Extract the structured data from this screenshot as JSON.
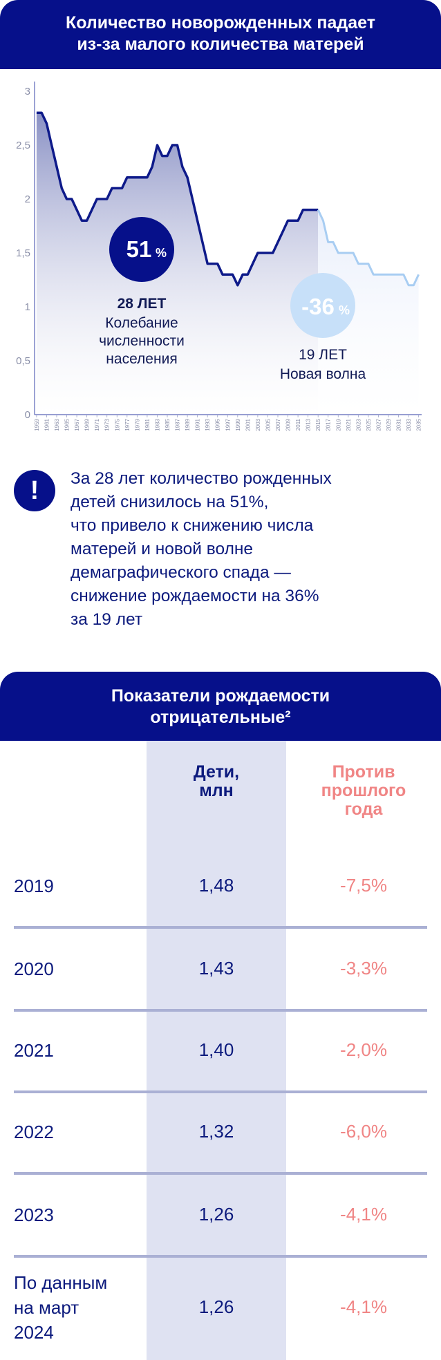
{
  "header": {
    "line1": "Количество новорожденных падает",
    "line2": "из-за малого количества матерей"
  },
  "chart_data": {
    "type": "area",
    "title": "Количество новорожденных падает из-за малого количества матерей",
    "xlabel": "",
    "ylabel": "",
    "ylim": [
      0,
      3
    ],
    "yticks": [
      "0",
      "0,5",
      "1",
      "1,5",
      "2",
      "2,5",
      "3"
    ],
    "xticks": [
      "1959",
      "1961",
      "1963",
      "1965",
      "1967",
      "1969",
      "1971",
      "1973",
      "1975",
      "1977",
      "1979",
      "1981",
      "1983",
      "1985",
      "1987",
      "1989",
      "1991",
      "1993",
      "1995",
      "1997",
      "1999",
      "2001",
      "2003",
      "2005",
      "2007",
      "2009",
      "2011",
      "2013",
      "2015",
      "2017",
      "2019",
      "2021",
      "2023",
      "2025",
      "2027",
      "2029",
      "2031",
      "2033",
      "2035"
    ],
    "series": [
      {
        "name": "",
        "style": "solid",
        "color": "#0e1a8a",
        "x": [
          1959,
          1960,
          1961,
          1962,
          1963,
          1964,
          1965,
          1966,
          1967,
          1968,
          1969,
          1970,
          1971,
          1972,
          1973,
          1974,
          1975,
          1976,
          1977,
          1978,
          1979,
          1980,
          1981,
          1982,
          1983,
          1984,
          1985,
          1986,
          1987,
          1988,
          1989,
          1990,
          1991,
          1992,
          1993,
          1994,
          1995,
          1996,
          1997,
          1998,
          1999,
          2000,
          2001,
          2002,
          2003,
          2004,
          2005,
          2006,
          2007,
          2008,
          2009,
          2010,
          2011,
          2012,
          2013,
          2014,
          2015
        ],
        "values": [
          2.8,
          2.8,
          2.7,
          2.5,
          2.3,
          2.1,
          2.0,
          2.0,
          1.9,
          1.8,
          1.8,
          1.9,
          2.0,
          2.0,
          2.0,
          2.1,
          2.1,
          2.1,
          2.2,
          2.2,
          2.2,
          2.2,
          2.2,
          2.3,
          2.5,
          2.4,
          2.4,
          2.5,
          2.5,
          2.3,
          2.2,
          2.0,
          1.8,
          1.6,
          1.4,
          1.4,
          1.4,
          1.3,
          1.3,
          1.3,
          1.2,
          1.3,
          1.3,
          1.4,
          1.5,
          1.5,
          1.5,
          1.5,
          1.6,
          1.7,
          1.8,
          1.8,
          1.8,
          1.9,
          1.9,
          1.9,
          1.9
        ]
      },
      {
        "name": "",
        "style": "forecast",
        "color": "#a8cdf2",
        "x": [
          2015,
          2016,
          2017,
          2018,
          2019,
          2020,
          2021,
          2022,
          2023,
          2024,
          2025,
          2026,
          2027,
          2028,
          2029,
          2030,
          2031,
          2032,
          2033,
          2034,
          2035
        ],
        "values": [
          1.9,
          1.8,
          1.6,
          1.6,
          1.5,
          1.5,
          1.5,
          1.5,
          1.4,
          1.4,
          1.4,
          1.3,
          1.3,
          1.3,
          1.3,
          1.3,
          1.3,
          1.3,
          1.2,
          1.2,
          1.3
        ]
      }
    ],
    "annotations": [
      {
        "value": "51",
        "unit": "%",
        "period": "28 ЛЕТ",
        "text1": "Колебание",
        "text2": "численности",
        "text3": "населения"
      },
      {
        "value": "-36",
        "unit": "%",
        "period": "19 ЛЕТ",
        "text1": "Новая волна"
      }
    ],
    "colors": {
      "area_top": "#8c93c6",
      "forecast_area": "#eef2fb",
      "line": "#0e1a8a",
      "forecast_line": "#a8cdf2",
      "badge1": "#06108a",
      "badge2": "#c7e0f9"
    }
  },
  "callout": {
    "icon": "exclamation-icon",
    "icon_glyph": "!",
    "lines": [
      "За 28 лет количество рожденных",
      "детей снизилось на 51%,",
      "что привело к снижению числа",
      "матерей и новой волне",
      "демаграфического спада —",
      "снижение рождаемости на 36%",
      "за 19 лет"
    ]
  },
  "table": {
    "title_line1": "Показатели рождаемости",
    "title_line2": "отрицательные²",
    "col_children": [
      "Дети,",
      "млн"
    ],
    "col_change": [
      "Против",
      "прошлого",
      "года"
    ],
    "rows": [
      {
        "year": [
          "2019"
        ],
        "children": "1,48",
        "change": "-7,5%"
      },
      {
        "year": [
          "2020"
        ],
        "children": "1,43",
        "change": "-3,3%"
      },
      {
        "year": [
          "2021"
        ],
        "children": "1,40",
        "change": "-2,0%"
      },
      {
        "year": [
          "2022"
        ],
        "children": "1,32",
        "change": "-6,0%"
      },
      {
        "year": [
          "2023"
        ],
        "children": "1,26",
        "change": "-4,1%"
      },
      {
        "year": [
          "По данным",
          "на март",
          "2024"
        ],
        "children": "1,26",
        "change": "-4,1%"
      }
    ]
  }
}
